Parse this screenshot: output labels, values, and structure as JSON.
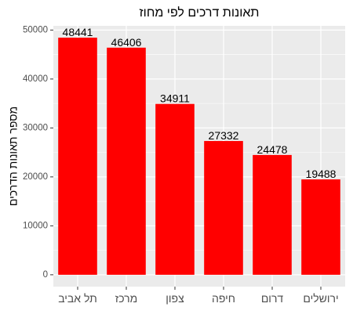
{
  "chart_data": {
    "type": "bar",
    "title": "תאונות דרכים לפי מחוז",
    "xlabel": "",
    "ylabel": "מספר תאונות הדרכים",
    "categories": [
      "תל אביב",
      "מרכז",
      "צפון",
      "חיפה",
      "דרום",
      "ירושלים"
    ],
    "values": [
      48441,
      46406,
      34911,
      27332,
      24478,
      19488
    ],
    "data_labels": [
      "48441",
      "46406",
      "34911",
      "27332",
      "24478",
      "19488"
    ],
    "yticks": [
      0,
      10000,
      20000,
      30000,
      40000,
      50000
    ],
    "ytick_labels": [
      "0",
      "10000",
      "20000",
      "30000",
      "40000",
      "50000"
    ],
    "ylim": [
      -2422,
      50863
    ],
    "grid": true,
    "legend": "none",
    "colors": {
      "bar": "#FF0000",
      "panel": "#EBEBEB",
      "grid": "#FFFFFF"
    }
  }
}
